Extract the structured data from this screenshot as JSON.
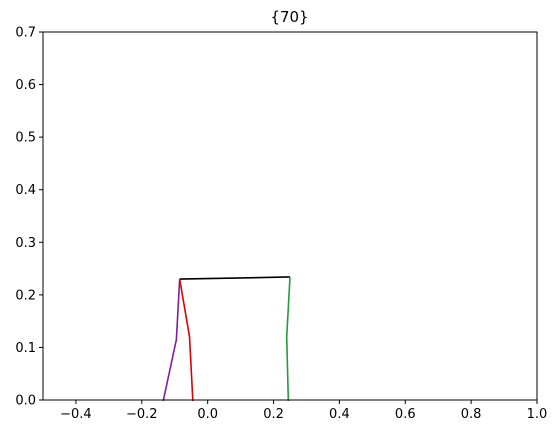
{
  "chart_data": {
    "type": "line",
    "title": "{70}",
    "xlabel": "",
    "ylabel": "",
    "xlim": [
      -0.5,
      1.0
    ],
    "ylim": [
      0.0,
      0.7
    ],
    "xticks": [
      -0.4,
      -0.2,
      0.0,
      0.2,
      0.4,
      0.6,
      0.8,
      1.0
    ],
    "xtick_labels": [
      "−0.4",
      "−0.2",
      "0.0",
      "0.2",
      "0.4",
      "0.6",
      "0.8",
      "1.0"
    ],
    "yticks": [
      0.0,
      0.1,
      0.2,
      0.3,
      0.4,
      0.5,
      0.6,
      0.7
    ],
    "ytick_labels": [
      "0.0",
      "0.1",
      "0.2",
      "0.3",
      "0.4",
      "0.5",
      "0.6",
      "0.7"
    ],
    "grid": false,
    "legend": false,
    "series": [
      {
        "color": "#000000",
        "x": [
          -0.085,
          0.25
        ],
        "y": [
          0.23,
          0.234
        ]
      },
      {
        "color": "#7f1fa0",
        "x": [
          -0.085,
          -0.095,
          -0.135
        ],
        "y": [
          0.23,
          0.115,
          -0.002
        ]
      },
      {
        "color": "#dd0000",
        "x": [
          -0.085,
          -0.055,
          -0.045
        ],
        "y": [
          0.23,
          0.12,
          -0.002
        ]
      },
      {
        "color": "#1f9e3a",
        "x": [
          0.25,
          0.24,
          0.245
        ],
        "y": [
          0.234,
          0.12,
          -0.002
        ]
      }
    ]
  }
}
